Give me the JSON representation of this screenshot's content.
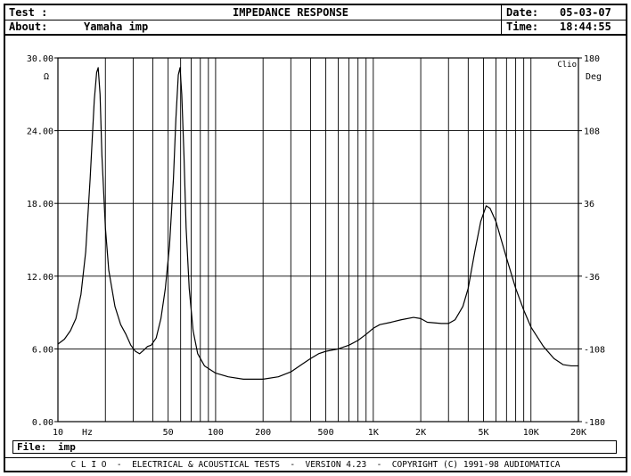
{
  "header": {
    "test_label": "Test :",
    "about_label": "About:",
    "about_value": "Yamaha imp",
    "title": "IMPEDANCE RESPONSE",
    "date_label": "Date:",
    "date_value": "05-03-07",
    "time_label": "Time:",
    "time_value": "18:44:55"
  },
  "file_bar": {
    "label": "File:",
    "value": "imp"
  },
  "footer": {
    "text": "C L I O  -  ELECTRICAL & ACOUSTICAL TESTS  -  VERSION 4.23  -  COPYRIGHT (C) 1991-98 AUDIOMATICA"
  },
  "chart_data": {
    "type": "line",
    "x_scale": "log",
    "xlim": [
      10,
      20000
    ],
    "ylim": [
      0,
      30
    ],
    "y2lim": [
      -180,
      180
    ],
    "left_unit": "Ω",
    "right_unit": "Deg",
    "x_unit": "Hz",
    "brand_mark": "Clio",
    "x_ticks": [
      {
        "v": 10,
        "label": "10"
      },
      {
        "v": 50,
        "label": "50"
      },
      {
        "v": 100,
        "label": "100"
      },
      {
        "v": 200,
        "label": "200"
      },
      {
        "v": 500,
        "label": "500"
      },
      {
        "v": 1000,
        "label": "1K"
      },
      {
        "v": 2000,
        "label": "2K"
      },
      {
        "v": 5000,
        "label": "5K"
      },
      {
        "v": 10000,
        "label": "10K"
      },
      {
        "v": 20000,
        "label": "20K"
      }
    ],
    "y_ticks": [
      0,
      6,
      12,
      18,
      24,
      30
    ],
    "y_tick_labels": [
      "0.00",
      "6.00",
      "12.00",
      "18.00",
      "24.00",
      "30.00"
    ],
    "y2_ticks": [
      -180,
      -108,
      -36,
      36,
      108,
      180
    ],
    "y2_tick_labels": [
      "-180",
      "-108",
      "-36",
      "36",
      "108",
      "180"
    ],
    "grid": true,
    "series": [
      {
        "color": "#000000",
        "points": [
          [
            10,
            6.4
          ],
          [
            11,
            6.8
          ],
          [
            12,
            7.5
          ],
          [
            13,
            8.5
          ],
          [
            14,
            10.5
          ],
          [
            15,
            14
          ],
          [
            16,
            20
          ],
          [
            17,
            26.5
          ],
          [
            17.6,
            28.8
          ],
          [
            18,
            29.2
          ],
          [
            18.5,
            27
          ],
          [
            19,
            22
          ],
          [
            20,
            16
          ],
          [
            21,
            12.5
          ],
          [
            23,
            9.5
          ],
          [
            25,
            8
          ],
          [
            27,
            7.2
          ],
          [
            29,
            6.3
          ],
          [
            31,
            5.8
          ],
          [
            33,
            5.6
          ],
          [
            35,
            5.9
          ],
          [
            37,
            6.2
          ],
          [
            39,
            6.3
          ],
          [
            42,
            6.9
          ],
          [
            45,
            8.5
          ],
          [
            48,
            11
          ],
          [
            51,
            14.5
          ],
          [
            54,
            20
          ],
          [
            56,
            25
          ],
          [
            58,
            28.6
          ],
          [
            59.5,
            29.2
          ],
          [
            61,
            27
          ],
          [
            63,
            22
          ],
          [
            65,
            16
          ],
          [
            68,
            11
          ],
          [
            72,
            7.5
          ],
          [
            77,
            5.6
          ],
          [
            85,
            4.6
          ],
          [
            100,
            4
          ],
          [
            120,
            3.7
          ],
          [
            150,
            3.5
          ],
          [
            200,
            3.5
          ],
          [
            250,
            3.7
          ],
          [
            300,
            4.1
          ],
          [
            350,
            4.7
          ],
          [
            400,
            5.2
          ],
          [
            450,
            5.6
          ],
          [
            500,
            5.8
          ],
          [
            600,
            6.0
          ],
          [
            700,
            6.3
          ],
          [
            800,
            6.7
          ],
          [
            900,
            7.2
          ],
          [
            1000,
            7.7
          ],
          [
            1100,
            8.0
          ],
          [
            1300,
            8.2
          ],
          [
            1500,
            8.4
          ],
          [
            1800,
            8.6
          ],
          [
            2000,
            8.5
          ],
          [
            2200,
            8.2
          ],
          [
            2700,
            8.1
          ],
          [
            3000,
            8.1
          ],
          [
            3300,
            8.4
          ],
          [
            3700,
            9.5
          ],
          [
            4000,
            11
          ],
          [
            4400,
            14
          ],
          [
            4800,
            16.5
          ],
          [
            5200,
            17.8
          ],
          [
            5500,
            17.6
          ],
          [
            6000,
            16.5
          ],
          [
            7000,
            13.5
          ],
          [
            8000,
            11
          ],
          [
            9000,
            9.2
          ],
          [
            10000,
            7.8
          ],
          [
            12000,
            6.2
          ],
          [
            14000,
            5.2
          ],
          [
            16000,
            4.7
          ],
          [
            18000,
            4.6
          ],
          [
            20000,
            4.6
          ]
        ]
      }
    ]
  }
}
